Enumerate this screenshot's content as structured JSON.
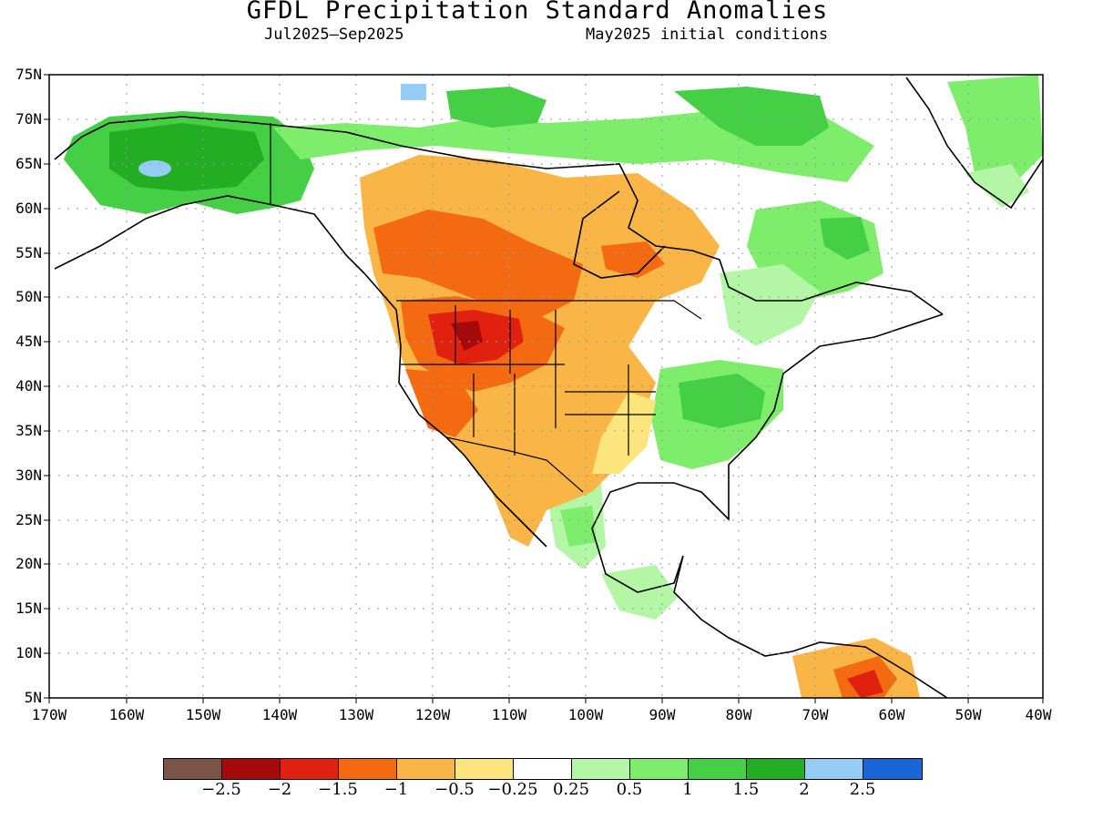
{
  "title": "GFDL Precipitation Standard Anomalies",
  "period": "Jul2025–Sep2025",
  "initial_conditions": "May2025 initial conditions",
  "lat_labels": [
    "75N",
    "70N",
    "65N",
    "60N",
    "55N",
    "50N",
    "45N",
    "40N",
    "35N",
    "30N",
    "25N",
    "20N",
    "15N",
    "10N",
    "5N"
  ],
  "lon_labels": [
    "170W",
    "160W",
    "150W",
    "140W",
    "130W",
    "120W",
    "110W",
    "100W",
    "90W",
    "80W",
    "70W",
    "60W",
    "50W",
    "40W"
  ],
  "colorbar": {
    "colors": [
      "#7b5449",
      "#a50a0a",
      "#e0210f",
      "#f46a10",
      "#f9b545",
      "#fce57d",
      "#ffffff",
      "#b3f7a6",
      "#7ded6b",
      "#45cf45",
      "#22ad22",
      "#94ccf4",
      "#1a66d6"
    ],
    "labels": [
      "−2.5",
      "−2",
      "−1.5",
      "−1",
      "−0.5",
      "−0.25",
      "0.25",
      "0.5",
      "1",
      "1.5",
      "2",
      "2.5"
    ]
  }
}
